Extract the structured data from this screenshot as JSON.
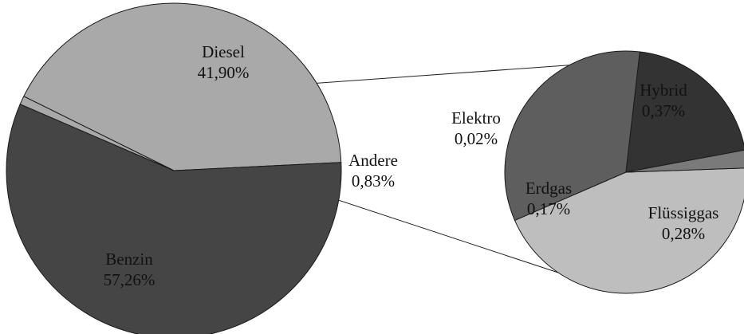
{
  "chart_data": {
    "type": "pie",
    "title": "",
    "main": {
      "slices": [
        {
          "name": "Diesel",
          "label": "41,90%",
          "value": 41.9,
          "color": "#a9a9a9"
        },
        {
          "name": "Andere",
          "label": "0,83%",
          "value": 0.83,
          "color": "#a9a9a9"
        },
        {
          "name": "Benzin",
          "label": "57,26%",
          "value": 57.26,
          "color": "#454545"
        }
      ]
    },
    "secondary": {
      "of": "Andere",
      "slices": [
        {
          "name": "Hybrid",
          "label": "0,37%",
          "value": 0.37,
          "color": "#bebebe"
        },
        {
          "name": "Flüssiggas",
          "label": "0,28%",
          "value": 0.28,
          "color": "#5e5e5e"
        },
        {
          "name": "Erdgas",
          "label": "0,17%",
          "value": 0.17,
          "color": "#333333"
        },
        {
          "name": "Elektro",
          "label": "0,02%",
          "value": 0.02,
          "color": "#7a7a7a"
        }
      ]
    }
  }
}
